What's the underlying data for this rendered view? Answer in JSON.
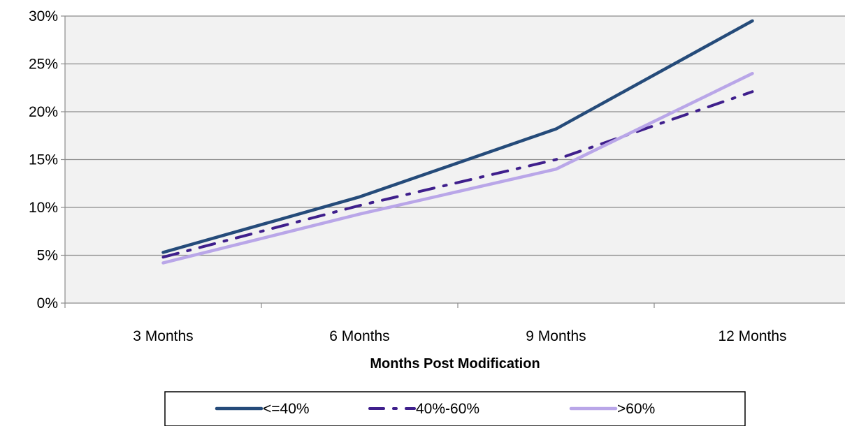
{
  "chart_data": {
    "type": "line",
    "categories": [
      "3 Months",
      "6 Months",
      "9 Months",
      "12 Months"
    ],
    "xlabel": "Months Post Modification",
    "ylabel": "",
    "ylim": [
      0,
      30
    ],
    "y_ticks": [
      "0%",
      "5%",
      "10%",
      "15%",
      "20%",
      "25%",
      "30%"
    ],
    "y_tick_values": [
      0,
      5,
      10,
      15,
      20,
      25,
      30
    ],
    "grid": true,
    "legend_position": "bottom",
    "series": [
      {
        "name": "<=40%",
        "values": [
          5.3,
          11.1,
          18.2,
          29.5
        ],
        "color": "#254b7a",
        "style": "solid"
      },
      {
        "name": "40%-60%",
        "values": [
          4.8,
          10.2,
          15.0,
          22.1
        ],
        "color": "#3f1f8c",
        "style": "dash-dot"
      },
      {
        "name": ">60%",
        "values": [
          4.2,
          9.3,
          14.0,
          24.0
        ],
        "color": "#b9a6e8",
        "style": "solid"
      }
    ]
  }
}
